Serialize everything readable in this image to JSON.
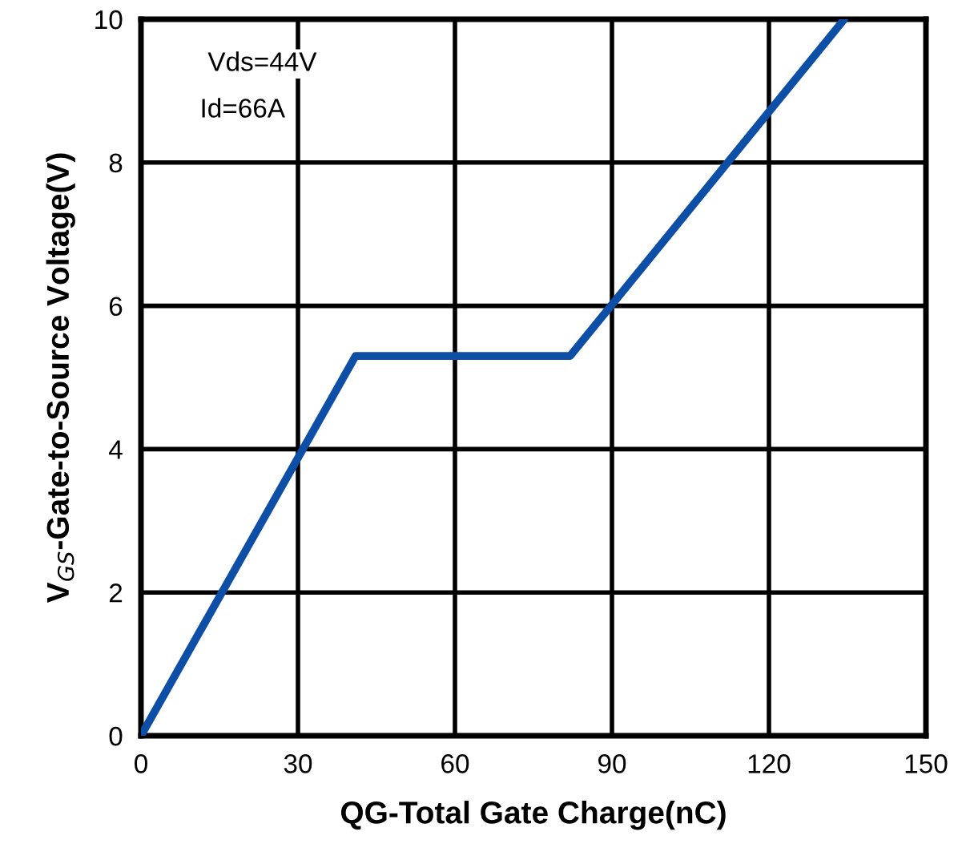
{
  "chart_data": {
    "type": "line",
    "xlabel": "QG-Total Gate Charge(nC)",
    "ylabel": "V$_{GS}$-Gate-to-Source Voltage(V)",
    "annotations": [
      "Vds=44V",
      "Id=66A"
    ],
    "series": [
      {
        "color": "#0d4ea6",
        "x": [
          0,
          41,
          82,
          134.4
        ],
        "values": [
          0,
          5.3,
          5.3,
          10
        ]
      }
    ],
    "xlim": [
      0,
      150
    ],
    "xticks": [
      0,
      30,
      60,
      90,
      120,
      150
    ],
    "ylim": [
      0,
      10
    ],
    "yticks": [
      0,
      2,
      4,
      6,
      8,
      10
    ],
    "grid": true,
    "marker": "none",
    "line_style": "solid",
    "legend": false
  }
}
